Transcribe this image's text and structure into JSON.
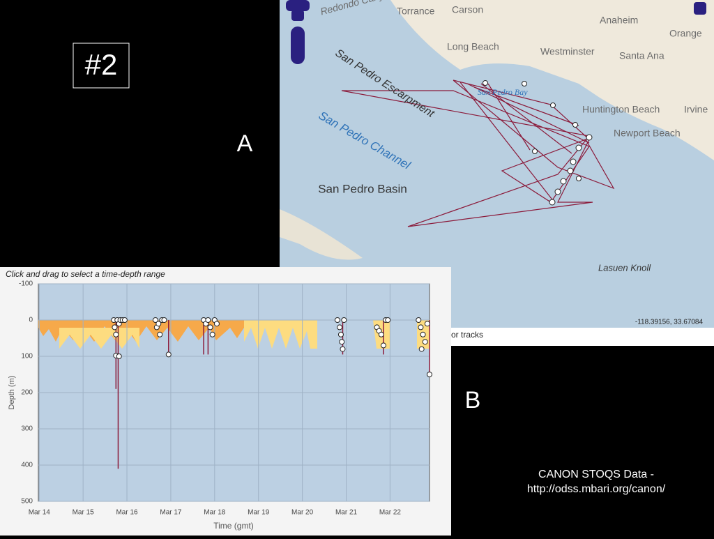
{
  "slide": {
    "badge": "#2",
    "panel_a": "A",
    "panel_b": "B",
    "footer": [
      "CANON STOQS Data -",
      "http://odss.mbari.org/canon/"
    ]
  },
  "map": {
    "places": [
      "Redondo Canyon",
      "Torrance",
      "Carson",
      "Anaheim",
      "Orange",
      "Long Beach",
      "Westminster",
      "Santa Ana",
      "San Pedro Escarpment",
      "San Pedro Bay",
      "Huntington Beach",
      "Irvine",
      "Newport Beach",
      "San Pedro Channel",
      "San Pedro Basin",
      "Lasuen Knoll"
    ],
    "coordinates": "-118.39156, 33.67084",
    "caption_fragment": "or tracks"
  },
  "chart_data": {
    "type": "scatter",
    "title": "Click and drag to select a time-depth range",
    "x_label": "Time (gmt)",
    "y_label": "Depth (m)",
    "xlim": [
      13.98,
      22.9
    ],
    "ylim": [
      -100,
      500
    ],
    "y_inverted": true,
    "grid": true,
    "xticks": [
      {
        "value": 14,
        "label": "Mar 14"
      },
      {
        "value": 15,
        "label": "Mar 15"
      },
      {
        "value": 16,
        "label": "Mar 16"
      },
      {
        "value": 17,
        "label": "Mar 17"
      },
      {
        "value": 18,
        "label": "Mar 18"
      },
      {
        "value": 19,
        "label": "Mar 19"
      },
      {
        "value": 20,
        "label": "Mar 20"
      },
      {
        "value": 21,
        "label": "Mar 21"
      },
      {
        "value": 22,
        "label": "Mar 22"
      }
    ],
    "yticks": [
      -100,
      0,
      100,
      200,
      300,
      400,
      500
    ],
    "profiles": {
      "color": "#8b1a3a",
      "x": [
        15.75,
        15.8,
        16.95,
        17.75,
        17.85,
        20.92,
        21.85,
        22.9
      ],
      "depth": [
        190,
        410,
        95,
        95,
        95,
        95,
        95,
        150
      ]
    },
    "points": {
      "color": "#ffffff",
      "x": [
        15.7,
        15.72,
        15.75,
        15.78,
        15.82,
        15.85,
        15.9,
        15.95,
        15.75,
        15.82,
        16.65,
        16.68,
        16.72,
        16.8,
        16.85,
        16.75,
        16.95,
        17.75,
        17.8,
        17.85,
        17.9,
        17.95,
        18.0,
        18.05,
        20.8,
        20.85,
        20.88,
        20.92,
        20.9,
        20.95,
        21.7,
        21.75,
        21.8,
        21.85,
        21.9,
        21.95,
        22.65,
        22.7,
        22.75,
        22.8,
        22.72,
        22.85,
        22.9
      ],
      "y": [
        0,
        20,
        40,
        0,
        10,
        0,
        0,
        0,
        98,
        100,
        0,
        20,
        10,
        0,
        0,
        40,
        95,
        0,
        10,
        0,
        20,
        40,
        0,
        10,
        0,
        20,
        40,
        80,
        60,
        0,
        20,
        30,
        40,
        70,
        0,
        0,
        0,
        20,
        40,
        60,
        80,
        10,
        150
      ]
    }
  }
}
